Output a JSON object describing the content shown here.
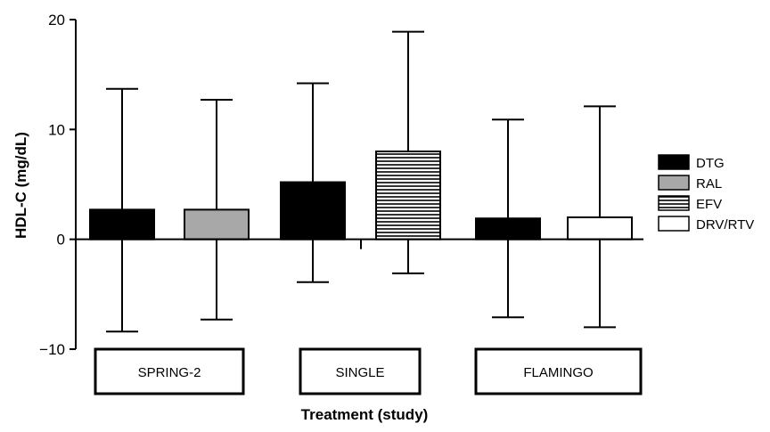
{
  "chart_data": {
    "type": "bar",
    "title": "",
    "xlabel": "Treatment (study)",
    "ylabel": "HDL-C (mg/dL)",
    "ylim": [
      -10,
      20
    ],
    "yticks": [
      -10,
      0,
      10,
      20
    ],
    "ytick_labels": [
      "−10",
      "0",
      "10",
      "20"
    ],
    "grid": false,
    "legend_position": "right",
    "legend": [
      {
        "label": "DTG",
        "fill": "solid-black"
      },
      {
        "label": "RAL",
        "fill": "solid-gray"
      },
      {
        "label": "EFV",
        "fill": "horizontal-stripes"
      },
      {
        "label": "DRV/RTV",
        "fill": "white"
      }
    ],
    "groups": [
      {
        "label": "SPRING-2",
        "bars": [
          {
            "series": "DTG",
            "value": 2.7,
            "err_low": -8.4,
            "err_high": 13.7
          },
          {
            "series": "RAL",
            "value": 2.7,
            "err_low": -7.3,
            "err_high": 12.7
          }
        ]
      },
      {
        "label": "SINGLE",
        "bars": [
          {
            "series": "DTG",
            "value": 5.2,
            "err_low": -3.9,
            "err_high": 14.2
          },
          {
            "series": "EFV",
            "value": 8.0,
            "err_low": -3.1,
            "err_high": 18.9
          }
        ]
      },
      {
        "label": "FLAMINGO",
        "bars": [
          {
            "series": "DTG",
            "value": 1.9,
            "err_low": -7.1,
            "err_high": 10.9
          },
          {
            "series": "DRV/RTV",
            "value": 2.0,
            "err_low": -8.0,
            "err_high": 12.1
          }
        ]
      }
    ]
  },
  "colors": {
    "DTG": "#000000",
    "RAL": "#a8a8a8",
    "EFV": "#ffffff",
    "DRV/RTV": "#ffffff",
    "stroke": "#000000"
  }
}
